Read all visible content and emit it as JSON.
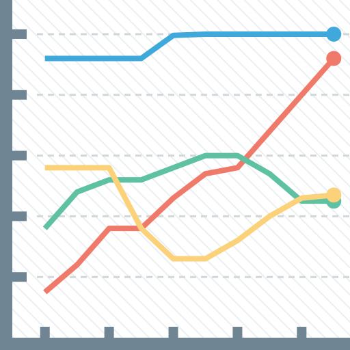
{
  "colors": {
    "axis": "#6f8593",
    "grid": "#d2d7da",
    "hatch": "#eceff1",
    "background": "#ffffff"
  },
  "chart_data": {
    "type": "line",
    "title": "",
    "xlabel": "",
    "ylabel": "",
    "grid": true,
    "legend": "none",
    "x": [
      0,
      1,
      2,
      3,
      4,
      5,
      6,
      7,
      8,
      9
    ],
    "xlim": [
      -0.25,
      9.25
    ],
    "ylim": [
      0,
      5.45
    ],
    "y_ticks": [
      1,
      2,
      3,
      4,
      5
    ],
    "x_ticks": [
      0,
      2,
      4,
      6,
      8
    ],
    "series": [
      {
        "color": "#3fa9dc",
        "end_marker": true,
        "values": [
          4.6,
          4.6,
          4.6,
          4.6,
          4.98,
          5.0,
          5.0,
          5.0,
          5.0,
          5.0
        ]
      },
      {
        "color": "#f07a6a",
        "end_marker": true,
        "values": [
          0.75,
          1.2,
          1.8,
          1.8,
          2.3,
          2.7,
          2.8,
          3.4,
          4.0,
          4.6
        ]
      },
      {
        "color": "#5ec1a1",
        "end_marker": true,
        "values": [
          1.8,
          2.4,
          2.6,
          2.6,
          2.8,
          3.0,
          3.0,
          2.7,
          2.25,
          2.25
        ]
      },
      {
        "color": "#fbd179",
        "end_marker": true,
        "values": [
          2.8,
          2.8,
          2.8,
          1.8,
          1.3,
          1.3,
          1.6,
          2.0,
          2.3,
          2.35
        ]
      }
    ]
  }
}
